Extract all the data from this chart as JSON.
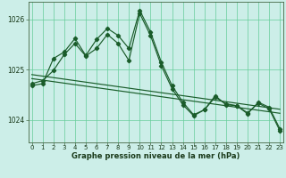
{
  "title": "Graphe pression niveau de la mer (hPa)",
  "bg_color": "#cceee8",
  "grid_color": "#66cc99",
  "line_color": "#1a5c2a",
  "ylim": [
    1023.55,
    1026.35
  ],
  "yticks": [
    1024,
    1025,
    1026
  ],
  "xlim": [
    -0.3,
    23.3
  ],
  "xticks": [
    0,
    1,
    2,
    3,
    4,
    5,
    6,
    7,
    8,
    9,
    10,
    11,
    12,
    13,
    14,
    15,
    16,
    17,
    18,
    19,
    20,
    21,
    22,
    23
  ],
  "series1": [
    1024.72,
    1024.78,
    1024.98,
    1025.3,
    1025.52,
    1025.27,
    1025.42,
    1025.7,
    1025.52,
    1025.18,
    1026.12,
    1025.68,
    1025.08,
    1024.62,
    1024.3,
    1024.08,
    1024.2,
    1024.48,
    1024.3,
    1024.28,
    1024.14,
    1024.33,
    1024.22,
    1023.78
  ],
  "series2": [
    1024.68,
    1024.72,
    1025.22,
    1025.35,
    1025.62,
    1025.28,
    1025.6,
    1025.82,
    1025.68,
    1025.42,
    1026.18,
    1025.75,
    1025.15,
    1024.68,
    1024.35,
    1024.1,
    1024.2,
    1024.45,
    1024.32,
    1024.28,
    1024.12,
    1024.35,
    1024.25,
    1023.82
  ],
  "trend1": [
    1024.9,
    1024.87,
    1024.84,
    1024.81,
    1024.78,
    1024.75,
    1024.72,
    1024.69,
    1024.66,
    1024.63,
    1024.6,
    1024.57,
    1024.54,
    1024.51,
    1024.48,
    1024.45,
    1024.42,
    1024.39,
    1024.36,
    1024.33,
    1024.3,
    1024.27,
    1024.24,
    1024.21
  ],
  "trend2": [
    1024.82,
    1024.79,
    1024.76,
    1024.73,
    1024.7,
    1024.67,
    1024.64,
    1024.61,
    1024.58,
    1024.55,
    1024.52,
    1024.49,
    1024.46,
    1024.43,
    1024.4,
    1024.37,
    1024.34,
    1024.31,
    1024.28,
    1024.25,
    1024.22,
    1024.19,
    1024.16,
    1024.13
  ]
}
